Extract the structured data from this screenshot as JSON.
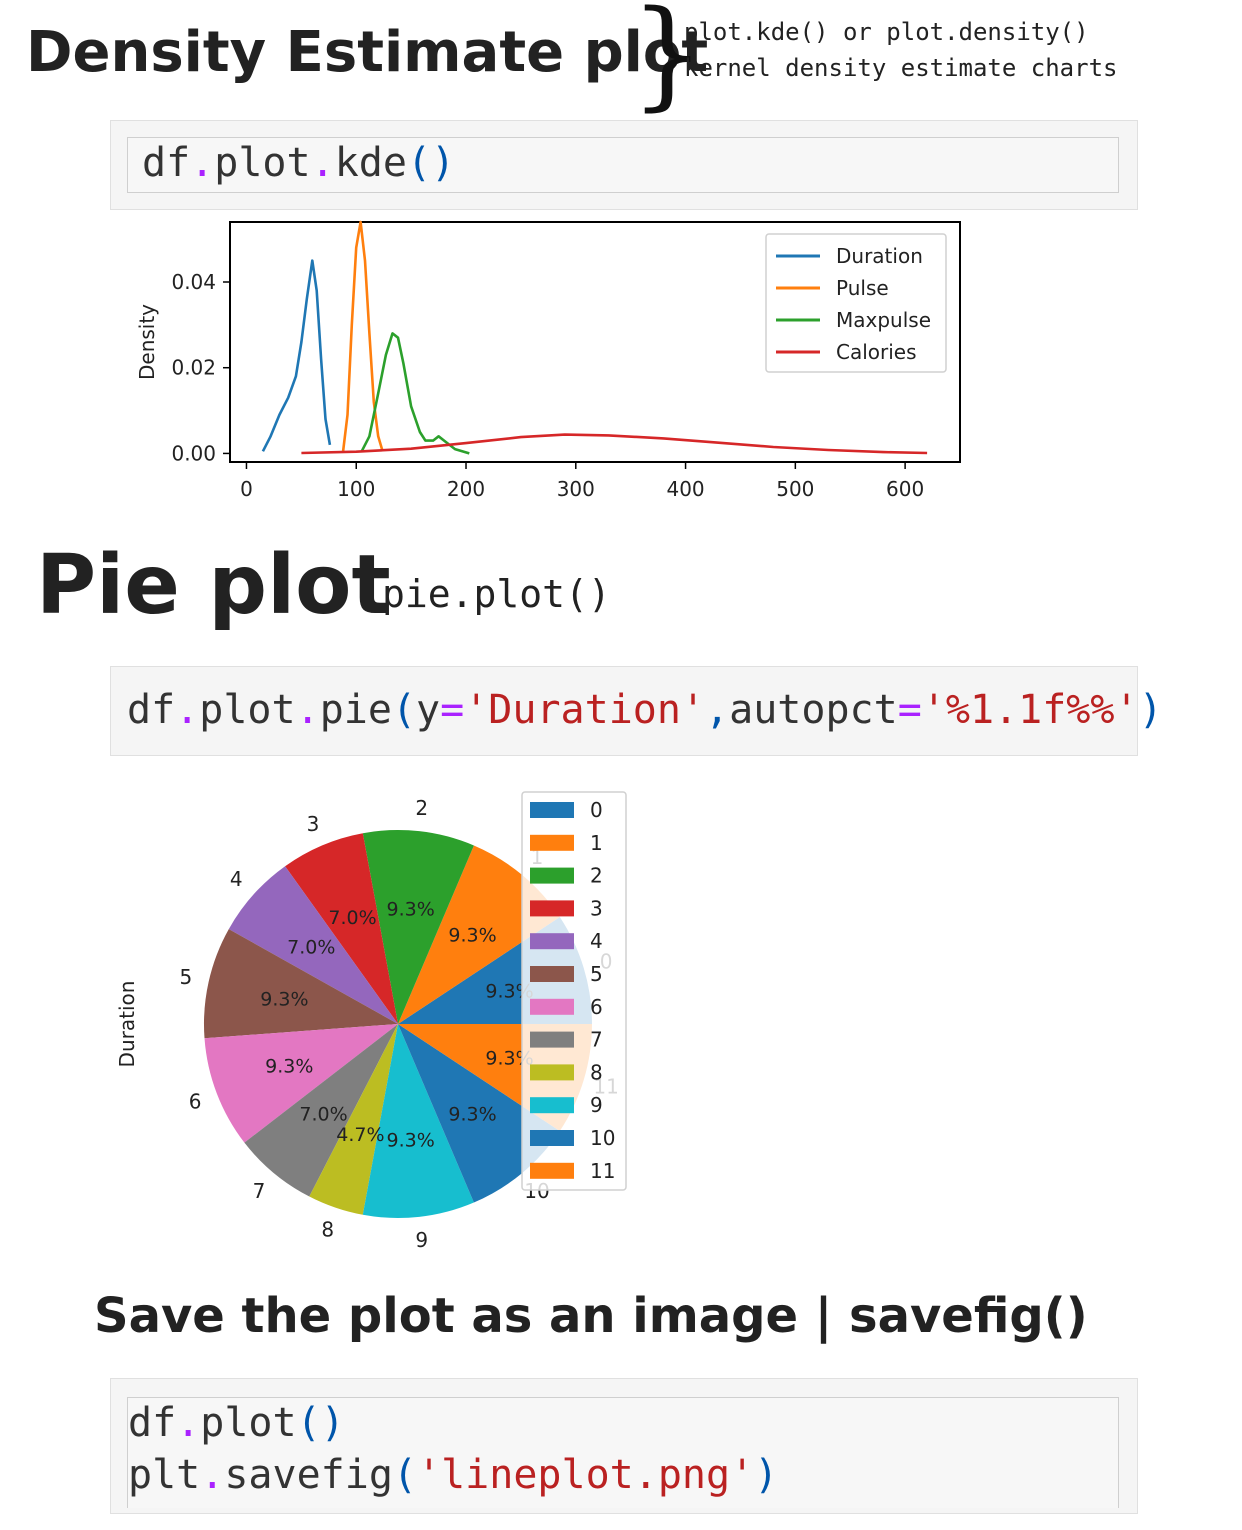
{
  "section_kde": {
    "title": "Density Estimate plot",
    "brace": "}",
    "note_line1": "plot.kde() or plot.density()",
    "note_line2": "kernel density estimate charts",
    "code": {
      "obj": "df",
      "dot1": ".",
      "m1": "plot",
      "dot2": ".",
      "m2": "kde",
      "paren": "()"
    }
  },
  "section_pie": {
    "title": "Pie plot",
    "subtitle": "pie.plot()",
    "code": {
      "obj": "df",
      "dot1": ".",
      "m1": "plot",
      "dot2": ".",
      "m2": "pie",
      "open": "(",
      "arg1": "y",
      "eq1": "=",
      "val1": "'Duration'",
      "comma": ",",
      "arg2": "autopct",
      "eq2": "=",
      "val2": "'%1.1f%%'",
      "close": ")"
    }
  },
  "section_save": {
    "title": "Save the plot as an image | savefig()",
    "line1": {
      "obj": "df",
      "dot": ".",
      "m": "plot",
      "paren": "()"
    },
    "line2": {
      "obj": "plt",
      "dot": ".",
      "m": "savefig",
      "open": "(",
      "arg": "'lineplot.png'",
      "close": ")"
    }
  },
  "chart_data": [
    {
      "type": "line",
      "title": "",
      "xlabel": "",
      "ylabel": "Density",
      "xlim": [
        -15,
        650
      ],
      "ylim": [
        -0.002,
        0.054
      ],
      "xticks": [
        0,
        100,
        200,
        300,
        400,
        500,
        600
      ],
      "yticks": [
        0.0,
        0.02,
        0.04
      ],
      "ytick_labels": [
        "0.00",
        "0.02",
        "0.04"
      ],
      "legend_position": "top-right",
      "grid": false,
      "series": [
        {
          "name": "Duration",
          "color": "#1f77b4",
          "x": [
            15,
            22,
            30,
            38,
            45,
            50,
            55,
            60,
            64,
            68,
            72,
            76
          ],
          "y": [
            0.0005,
            0.004,
            0.009,
            0.013,
            0.018,
            0.026,
            0.036,
            0.045,
            0.038,
            0.022,
            0.008,
            0.002
          ]
        },
        {
          "name": "Pulse",
          "color": "#ff7f0e",
          "x": [
            88,
            92,
            96,
            100,
            104,
            108,
            112,
            116,
            120,
            124
          ],
          "y": [
            0.0005,
            0.009,
            0.03,
            0.048,
            0.054,
            0.045,
            0.028,
            0.012,
            0.004,
            0.0005
          ]
        },
        {
          "name": "Maxpulse",
          "color": "#2ca02c",
          "x": [
            105,
            112,
            120,
            127,
            133,
            138,
            143,
            150,
            158,
            163,
            170,
            175,
            180,
            190,
            203
          ],
          "y": [
            0.0005,
            0.004,
            0.014,
            0.023,
            0.028,
            0.027,
            0.021,
            0.011,
            0.005,
            0.003,
            0.003,
            0.004,
            0.003,
            0.001,
            0.0
          ]
        },
        {
          "name": "Calories",
          "color": "#d62728",
          "x": [
            50,
            100,
            150,
            200,
            250,
            290,
            330,
            380,
            430,
            480,
            530,
            580,
            620
          ],
          "y": [
            0.0001,
            0.0004,
            0.0011,
            0.0024,
            0.0038,
            0.0044,
            0.0042,
            0.0035,
            0.0025,
            0.0015,
            0.0008,
            0.0003,
            0.0001
          ]
        }
      ]
    },
    {
      "type": "pie",
      "title": "",
      "ylabel": "Duration",
      "legend_position": "right",
      "labels": [
        "0",
        "1",
        "2",
        "3",
        "4",
        "5",
        "6",
        "7",
        "8",
        "9",
        "10",
        "11"
      ],
      "values": [
        60,
        60,
        60,
        45,
        45,
        60,
        60,
        45,
        30,
        60,
        60,
        60
      ],
      "pct_labels": [
        "9.3%",
        "9.3%",
        "9.3%",
        "7.0%",
        "7.0%",
        "9.3%",
        "9.3%",
        "7.0%",
        "4.7%",
        "9.3%",
        "9.3%",
        "9.3%"
      ],
      "colors": [
        "#1f77b4",
        "#ff7f0e",
        "#2ca02c",
        "#d62728",
        "#9467bd",
        "#8c564b",
        "#e377c2",
        "#7f7f7f",
        "#bcbd22",
        "#17becf",
        "#1f77b4",
        "#ff7f0e"
      ]
    }
  ]
}
